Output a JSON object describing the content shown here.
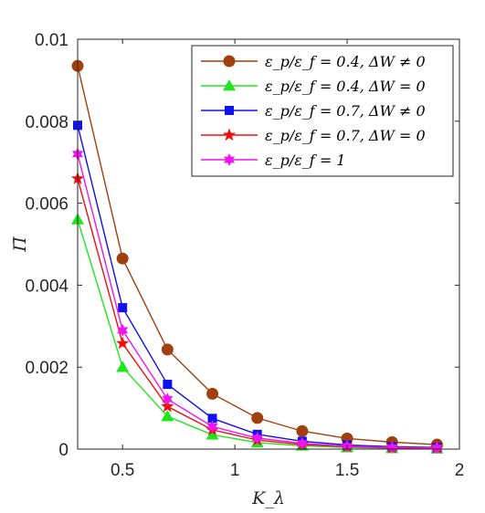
{
  "chart_data": {
    "type": "line",
    "xlabel": "K_λ",
    "ylabel": "Π̄",
    "xlim": [
      0.3,
      2.0
    ],
    "ylim": [
      0,
      0.01
    ],
    "grid": false,
    "legend_position": "top-right",
    "x_ticks": [
      {
        "value": 0.5,
        "label": "0.5"
      },
      {
        "value": 1.0,
        "label": "1"
      },
      {
        "value": 1.5,
        "label": "1.5"
      },
      {
        "value": 2.0,
        "label": "2"
      }
    ],
    "y_ticks": [
      {
        "value": 0,
        "label": "0"
      },
      {
        "value": 0.002,
        "label": "0.002"
      },
      {
        "value": 0.004,
        "label": "0.004"
      },
      {
        "value": 0.006,
        "label": "0.006"
      },
      {
        "value": 0.008,
        "label": "0.008"
      },
      {
        "value": 0.01,
        "label": "0.01"
      }
    ],
    "x": [
      0.3,
      0.5,
      0.7,
      0.9,
      1.1,
      1.3,
      1.5,
      1.7,
      1.9
    ],
    "series": [
      {
        "name": "ε_p/ε_f = 0.4, ΔW ≠ 0",
        "color": "#a0400f",
        "marker": "circle",
        "values": [
          0.00935,
          0.00465,
          0.00243,
          0.00135,
          0.00076,
          0.00044,
          0.00026,
          0.00017,
          0.00011
        ]
      },
      {
        "name": "ε_p/ε_f = 0.4, ΔW = 0",
        "color": "#1ee61e",
        "marker": "triangle",
        "values": [
          0.0056,
          0.002,
          0.0008,
          0.00035,
          0.00016,
          8e-05,
          4e-05,
          2e-05,
          1e-05
        ]
      },
      {
        "name": "ε_p/ε_f = 0.7, ΔW ≠ 0",
        "color": "#1010f0",
        "marker": "square",
        "values": [
          0.0079,
          0.00345,
          0.00158,
          0.00075,
          0.00036,
          0.00019,
          0.0001,
          6e-05,
          4e-05
        ]
      },
      {
        "name": "ε_p/ε_f = 0.7, ΔW = 0",
        "color": "#ee1010",
        "marker": "star5",
        "values": [
          0.0066,
          0.00258,
          0.00104,
          0.00047,
          0.00022,
          0.00011,
          6e-05,
          3e-05,
          2e-05
        ]
      },
      {
        "name": "ε_p/ε_f = 1",
        "color": "#f014f0",
        "marker": "star6",
        "values": [
          0.0072,
          0.0029,
          0.00122,
          0.00055,
          0.00027,
          0.00014,
          7e-05,
          4e-05,
          3e-05
        ]
      }
    ]
  }
}
